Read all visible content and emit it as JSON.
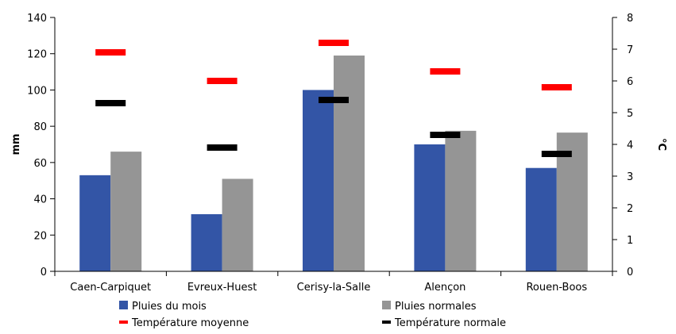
{
  "chart_data": {
    "type": "bar",
    "title": "",
    "categories": [
      "Caen-Carpiquet",
      "Evreux-Huest",
      "Cerisy-la-Salle",
      "Alençon",
      "Rouen-Boos"
    ],
    "y_left": {
      "label": "mm",
      "range": [
        0,
        140
      ],
      "ticks": [
        "0",
        "20",
        "40",
        "60",
        "80",
        "100",
        "120",
        "140"
      ]
    },
    "y_right": {
      "label": "°C",
      "range": [
        0,
        8
      ],
      "ticks": [
        "0",
        "1",
        "2",
        "3",
        "4",
        "5",
        "6",
        "7",
        "8"
      ]
    },
    "series": [
      {
        "name": "Pluies du mois",
        "kind": "bar",
        "axis": "left",
        "color": "#3355a6",
        "values": [
          53,
          31.5,
          100,
          70,
          57
        ]
      },
      {
        "name": "Pluies normales",
        "kind": "bar",
        "axis": "left",
        "color": "#959595",
        "values": [
          66,
          51,
          119,
          77.5,
          76.5
        ]
      },
      {
        "name": "Température moyenne",
        "kind": "marker",
        "axis": "right",
        "color": "#ff0000",
        "values": [
          6.9,
          6.0,
          7.2,
          6.3,
          5.8
        ]
      },
      {
        "name": "Température normale",
        "kind": "marker",
        "axis": "right",
        "color": "#000000",
        "values": [
          5.3,
          3.9,
          5.4,
          4.3,
          3.7
        ]
      }
    ],
    "grid": false,
    "legend_position": "bottom"
  }
}
